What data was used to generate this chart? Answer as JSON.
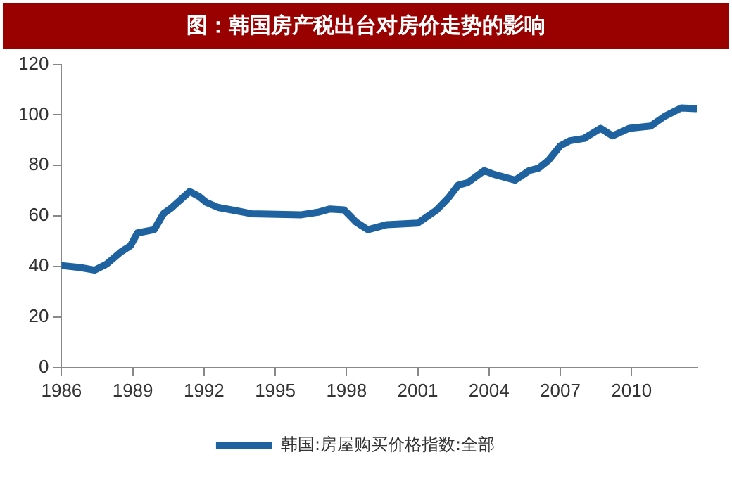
{
  "chart_data": {
    "type": "line",
    "title": "图：韩国房产税出台对房价走势的影响",
    "series": [
      {
        "name": "韩国:房屋购买价格指数:全部",
        "color": "#1f62a0",
        "x": [
          1986.0,
          1986.8,
          1987.4,
          1987.9,
          1988.5,
          1988.9,
          1989.2,
          1989.9,
          1990.3,
          1990.6,
          1991.4,
          1991.8,
          1992.1,
          1992.6,
          1993.4,
          1994.0,
          1996.1,
          1996.8,
          1997.3,
          1997.9,
          1998.4,
          1998.9,
          1999.7,
          2001.0,
          2001.8,
          2002.3,
          2002.7,
          2003.1,
          2003.8,
          2004.2,
          2005.1,
          2005.7,
          2006.1,
          2006.5,
          2007.0,
          2007.4,
          2008.0,
          2008.7,
          2009.2,
          2009.9,
          2010.8,
          2011.4,
          2012.1,
          2012.7
        ],
        "values": [
          40.4,
          39.6,
          38.6,
          41,
          45.8,
          48.2,
          53.3,
          54.6,
          61,
          63,
          69.7,
          67.7,
          65.4,
          63.4,
          62,
          60.9,
          60.5,
          61.5,
          62.8,
          62.4,
          57.6,
          54.6,
          56.6,
          57.2,
          62.4,
          67.3,
          72.2,
          73.2,
          78,
          76.5,
          74.2,
          78,
          79,
          82,
          87.8,
          89.8,
          90.7,
          94.7,
          91.7,
          94.7,
          95.6,
          99.5,
          102.8,
          102.5
        ]
      }
    ],
    "xlim": [
      1986,
      2012.75
    ],
    "xticks": [
      1986,
      1989,
      1992,
      1995,
      1998,
      2001,
      2004,
      2007,
      2010
    ],
    "ylim": [
      0,
      120
    ],
    "yticks": [
      0,
      20,
      40,
      60,
      80,
      100,
      120
    ],
    "grid": false,
    "legend": "bottom",
    "marker": "none",
    "line_style": "solid"
  }
}
